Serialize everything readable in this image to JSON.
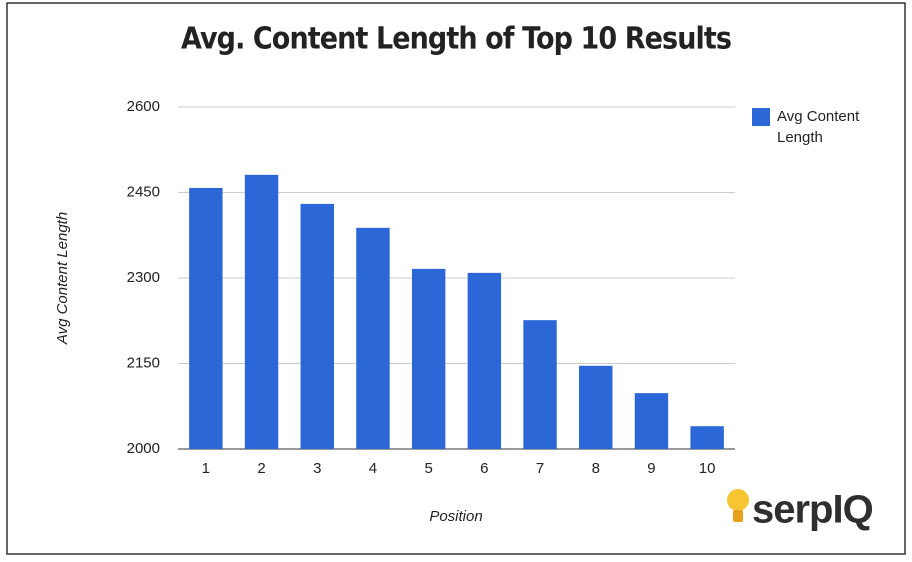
{
  "chart_data": {
    "type": "bar",
    "title": "Avg. Content Length of Top 10 Results",
    "x_label": "Position",
    "y_label": "Avg Content Length",
    "categories": [
      "1",
      "2",
      "3",
      "4",
      "5",
      "6",
      "7",
      "8",
      "9",
      "10"
    ],
    "series": [
      {
        "name": "Avg Content Length",
        "color": "#2b67d6",
        "values": [
          2458,
          2481,
          2430,
          2388,
          2316,
          2309,
          2226,
          2146,
          2098,
          2040
        ]
      }
    ],
    "ylim": [
      2000,
      2600
    ],
    "yticks": [
      2000,
      2150,
      2300,
      2450,
      2600
    ],
    "grid": true,
    "legend": "right"
  },
  "logo": "serpIQ"
}
